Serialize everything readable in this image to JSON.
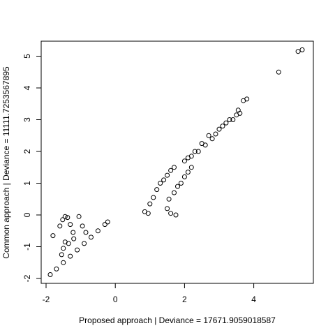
{
  "chart_data": {
    "type": "scatter",
    "title": "",
    "xlabel": "Proposed approach | Deviance = 17671.9059018587",
    "ylabel": "Common approach | Deviance = 11111.7253567895",
    "xlim": [
      -2.1,
      5.6
    ],
    "ylim": [
      -2.2,
      5.5
    ],
    "x_ticks": [
      -2,
      0,
      2,
      4
    ],
    "y_ticks": [
      -2,
      -1,
      0,
      1,
      2,
      3,
      4,
      5
    ],
    "x_tick_labels": [
      "-2",
      "0",
      "2",
      "4"
    ],
    "y_tick_labels": [
      "-2",
      "-1",
      "0",
      "1",
      "2",
      "3",
      "4",
      "5"
    ],
    "grid": false,
    "marker": "open-circle",
    "marker_color": "#000000",
    "points": [
      [
        -1.88,
        -1.88
      ],
      [
        -1.7,
        -1.7
      ],
      [
        -1.5,
        -1.5
      ],
      [
        -1.3,
        -1.3
      ],
      [
        -1.1,
        -1.1
      ],
      [
        -0.9,
        -0.9
      ],
      [
        -0.7,
        -0.7
      ],
      [
        -0.5,
        -0.5
      ],
      [
        -0.3,
        -0.3
      ],
      [
        -0.22,
        -0.22
      ],
      [
        -1.8,
        -0.65
      ],
      [
        -1.6,
        -0.35
      ],
      [
        -1.52,
        -0.15
      ],
      [
        -1.45,
        -0.05
      ],
      [
        -1.38,
        -0.08
      ],
      [
        -1.3,
        -0.3
      ],
      [
        -1.22,
        -0.55
      ],
      [
        -1.55,
        -1.25
      ],
      [
        -1.5,
        -1.05
      ],
      [
        -1.45,
        -0.85
      ],
      [
        -1.05,
        -0.05
      ],
      [
        -0.95,
        -0.35
      ],
      [
        -0.85,
        -0.55
      ],
      [
        -1.2,
        -0.75
      ],
      [
        -1.35,
        -0.9
      ],
      [
        0.85,
        0.1
      ],
      [
        0.95,
        0.05
      ],
      [
        1.0,
        0.35
      ],
      [
        1.1,
        0.55
      ],
      [
        1.2,
        0.8
      ],
      [
        1.3,
        1.0
      ],
      [
        1.4,
        1.1
      ],
      [
        1.5,
        1.25
      ],
      [
        1.6,
        1.4
      ],
      [
        1.7,
        1.5
      ],
      [
        1.5,
        0.2
      ],
      [
        1.6,
        0.05
      ],
      [
        1.75,
        0.0
      ],
      [
        1.55,
        0.5
      ],
      [
        1.7,
        0.7
      ],
      [
        1.8,
        0.9
      ],
      [
        1.9,
        1.0
      ],
      [
        2.0,
        1.2
      ],
      [
        2.1,
        1.35
      ],
      [
        2.2,
        1.5
      ],
      [
        2.0,
        1.7
      ],
      [
        2.2,
        1.85
      ],
      [
        2.4,
        2.0
      ],
      [
        2.6,
        2.2
      ],
      [
        2.8,
        2.4
      ],
      [
        2.9,
        2.55
      ],
      [
        2.7,
        2.5
      ],
      [
        2.5,
        2.25
      ],
      [
        2.3,
        2.0
      ],
      [
        2.1,
        1.8
      ],
      [
        3.0,
        2.7
      ],
      [
        3.1,
        2.8
      ],
      [
        3.2,
        2.9
      ],
      [
        3.3,
        3.0
      ],
      [
        3.4,
        3.0
      ],
      [
        3.5,
        3.15
      ],
      [
        3.55,
        3.3
      ],
      [
        3.7,
        3.6
      ],
      [
        3.8,
        3.65
      ],
      [
        3.6,
        3.2
      ],
      [
        4.72,
        4.5
      ],
      [
        5.28,
        5.15
      ],
      [
        5.4,
        5.2
      ]
    ]
  }
}
